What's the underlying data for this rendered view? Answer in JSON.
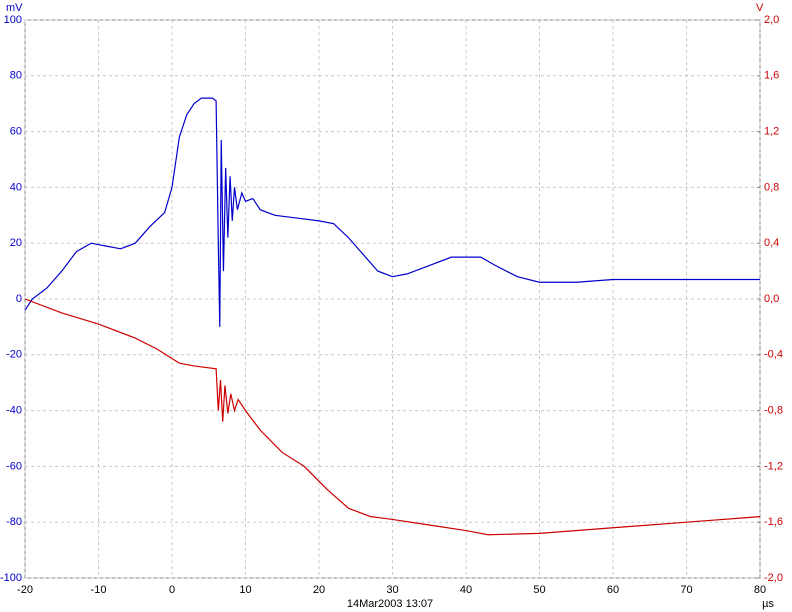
{
  "chart_data": {
    "type": "line",
    "y_label": "mV",
    "y2_label": "V",
    "x_label": "µs",
    "timestamp": "14Mar2003 13:07",
    "xlim": [
      -20,
      80
    ],
    "xticks": [
      -20,
      -10,
      0,
      10,
      20,
      30,
      40,
      50,
      60,
      70,
      80
    ],
    "ylim": [
      -100,
      100
    ],
    "yticks": [
      -100,
      -80,
      -60,
      -40,
      -20,
      0,
      20,
      40,
      60,
      80,
      100
    ],
    "y2lim": [
      -2,
      2
    ],
    "y2ticks": [
      {
        "value": -2,
        "label": "-2,0"
      },
      {
        "value": -1.6,
        "label": "-1,6"
      },
      {
        "value": -1.2,
        "label": "-1,2"
      },
      {
        "value": -0.8,
        "label": "-0,8"
      },
      {
        "value": -0.4,
        "label": "-0,4"
      },
      {
        "value": 0,
        "label": "0,0"
      },
      {
        "value": 0.4,
        "label": "0,4"
      },
      {
        "value": 0.8,
        "label": "0,8"
      },
      {
        "value": 1.2,
        "label": "1,2"
      },
      {
        "value": 1.6,
        "label": "1,6"
      },
      {
        "value": 2,
        "label": "2,0"
      }
    ],
    "grid": true,
    "y_color": "#0000cc",
    "y2_color": "#cc0000",
    "series": [
      {
        "color": "#0000cc",
        "axis": "y",
        "x": [
          -20,
          -19,
          -17,
          -15,
          -13,
          -11,
          -9,
          -7,
          -5,
          -3,
          -1,
          0,
          1,
          2,
          3,
          4,
          5.5,
          6,
          6.3,
          6.5,
          6.7,
          7.0,
          7.3,
          7.6,
          7.9,
          8.2,
          8.5,
          8.9,
          9.5,
          10,
          11,
          12,
          14,
          17,
          20,
          22,
          24,
          26,
          28,
          30,
          32,
          35,
          38,
          42,
          44,
          47,
          50,
          55,
          60,
          65,
          70,
          75,
          80
        ],
        "values": [
          -4,
          0,
          4,
          10,
          17,
          20,
          19,
          18,
          20,
          26,
          31,
          40,
          58,
          66,
          70,
          72,
          72,
          71,
          20,
          -10,
          57,
          10,
          47,
          22,
          44,
          28,
          40,
          32,
          38,
          35,
          36,
          32,
          30,
          29,
          28,
          27,
          22,
          16,
          10,
          8,
          9,
          12,
          15,
          15,
          12,
          8,
          6,
          6,
          7,
          7,
          7,
          7,
          7
        ]
      },
      {
        "color": "#cc0000",
        "axis": "y2",
        "x": [
          -20,
          -15,
          -10,
          -5,
          -2,
          1,
          3,
          6,
          6.3,
          6.6,
          6.9,
          7.2,
          7.6,
          8,
          8.5,
          9,
          10,
          12,
          15,
          18,
          21,
          24,
          27,
          30,
          35,
          40,
          43,
          50,
          60,
          70,
          80
        ],
        "values": [
          0,
          -0.1,
          -0.18,
          -0.28,
          -0.36,
          -0.46,
          -0.48,
          -0.5,
          -0.8,
          -0.58,
          -0.88,
          -0.62,
          -0.82,
          -0.68,
          -0.8,
          -0.72,
          -0.8,
          -0.94,
          -1.1,
          -1.2,
          -1.36,
          -1.5,
          -1.56,
          -1.58,
          -1.62,
          -1.66,
          -1.69,
          -1.68,
          -1.64,
          -1.6,
          -1.56
        ]
      }
    ]
  }
}
